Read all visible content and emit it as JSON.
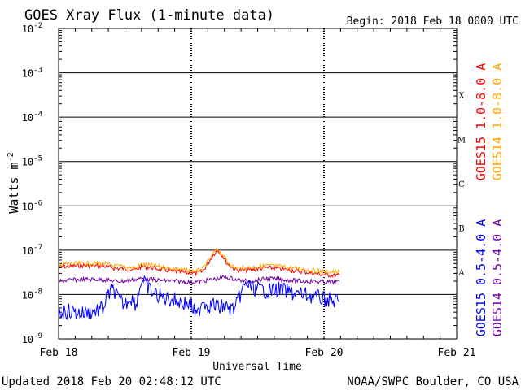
{
  "header": {
    "title": "GOES Xray Flux (1-minute data)",
    "begin_label": "Begin:  2018 Feb 18 0000 UTC"
  },
  "footer": {
    "updated": "Updated 2018 Feb 20 02:48:12 UTC",
    "credit": "NOAA/SWPC Boulder, CO USA"
  },
  "chart_data": {
    "type": "line",
    "title": "GOES Xray Flux (1-minute data)",
    "xlabel": "Universal Time",
    "ylabel": "Watts m",
    "ylabel_exp": "-2",
    "yscale": "log",
    "ylim": [
      1e-09,
      0.01
    ],
    "xlim_hours": [
      0,
      72
    ],
    "x_ticks": [
      {
        "hour": 0,
        "label": "Feb 18"
      },
      {
        "hour": 24,
        "label": "Feb 19"
      },
      {
        "hour": 48,
        "label": "Feb 20"
      },
      {
        "hour": 72,
        "label": "Feb 21"
      }
    ],
    "y_ticks": [
      {
        "exp": -9,
        "base": "10",
        "sup": "-9"
      },
      {
        "exp": -8,
        "base": "10",
        "sup": "-8"
      },
      {
        "exp": -7,
        "base": "10",
        "sup": "-7"
      },
      {
        "exp": -6,
        "base": "10",
        "sup": "-6"
      },
      {
        "exp": -5,
        "base": "10",
        "sup": "-5"
      },
      {
        "exp": -4,
        "base": "10",
        "sup": "-4"
      },
      {
        "exp": -3,
        "base": "10",
        "sup": "-3"
      },
      {
        "exp": -2,
        "base": "10",
        "sup": "-2"
      }
    ],
    "flare_classes": [
      {
        "label": "A",
        "exp": -7.5
      },
      {
        "label": "B",
        "exp": -6.5
      },
      {
        "label": "C",
        "exp": -5.5
      },
      {
        "label": "M",
        "exp": -4.5
      },
      {
        "label": "X",
        "exp": -3.5
      }
    ],
    "legend": [
      {
        "name": "GOES15 1.0-8.0 A",
        "color": "#ff0000"
      },
      {
        "name": "GOES14 1.0-8.0 A",
        "color": "#ffa500"
      },
      {
        "name": "GOES15 0.5-4.0 A",
        "color": "#0000ff"
      },
      {
        "name": "GOES14 0.5-4.0 A",
        "color": "#7000a0"
      }
    ],
    "series": [
      {
        "name": "GOES15 1.0-8.0 A",
        "color": "#ff0000",
        "points": [
          [
            0,
            4.2e-08
          ],
          [
            4,
            4.5e-08
          ],
          [
            8,
            4.4e-08
          ],
          [
            10,
            3.9e-08
          ],
          [
            12,
            3.8e-08
          ],
          [
            14,
            3.6e-08
          ],
          [
            15,
            4.3e-08
          ],
          [
            17,
            4e-08
          ],
          [
            19,
            3.6e-08
          ],
          [
            21,
            3.3e-08
          ],
          [
            23,
            3.1e-08
          ],
          [
            25,
            3e-08
          ],
          [
            26,
            3.3e-08
          ],
          [
            27,
            5e-08
          ],
          [
            28,
            8e-08
          ],
          [
            28.8,
            1e-07
          ],
          [
            29.5,
            8e-08
          ],
          [
            30.5,
            5e-08
          ],
          [
            32,
            3.6e-08
          ],
          [
            34,
            3.5e-08
          ],
          [
            36,
            3.8e-08
          ],
          [
            38,
            4e-08
          ],
          [
            40,
            3.8e-08
          ],
          [
            42,
            3.5e-08
          ],
          [
            44,
            3.3e-08
          ],
          [
            46,
            3e-08
          ],
          [
            48,
            2.8e-08
          ],
          [
            50,
            2.7e-08
          ],
          [
            50.8,
            2.7e-08
          ]
        ]
      },
      {
        "name": "GOES14 1.0-8.0 A",
        "color": "#ffa500",
        "points": [
          [
            0,
            4.8e-08
          ],
          [
            4,
            5e-08
          ],
          [
            8,
            5e-08
          ],
          [
            10,
            4.4e-08
          ],
          [
            12,
            4.2e-08
          ],
          [
            14,
            4e-08
          ],
          [
            15,
            4.8e-08
          ],
          [
            17,
            4.5e-08
          ],
          [
            19,
            4.1e-08
          ],
          [
            21,
            3.8e-08
          ],
          [
            23,
            3.5e-08
          ],
          [
            25,
            3.4e-08
          ],
          [
            26,
            3.7e-08
          ],
          [
            27,
            5.4e-08
          ],
          [
            28,
            8.5e-08
          ],
          [
            28.8,
            1.05e-07
          ],
          [
            29.5,
            8.6e-08
          ],
          [
            30.5,
            5.5e-08
          ],
          [
            32,
            4e-08
          ],
          [
            34,
            4e-08
          ],
          [
            36,
            4.3e-08
          ],
          [
            38,
            4.5e-08
          ],
          [
            40,
            4.3e-08
          ],
          [
            42,
            4e-08
          ],
          [
            44,
            3.8e-08
          ],
          [
            46,
            3.5e-08
          ],
          [
            48,
            3.3e-08
          ],
          [
            50,
            3.2e-08
          ],
          [
            50.8,
            3.2e-08
          ]
        ]
      },
      {
        "name": "GOES14 0.5-4.0 A",
        "color": "#7000a0",
        "points": [
          [
            0,
            2e-08
          ],
          [
            4,
            2.2e-08
          ],
          [
            8,
            2.2e-08
          ],
          [
            10,
            2e-08
          ],
          [
            12,
            2e-08
          ],
          [
            15,
            2.3e-08
          ],
          [
            18,
            2.1e-08
          ],
          [
            21,
            2e-08
          ],
          [
            24,
            1.9e-08
          ],
          [
            26,
            2e-08
          ],
          [
            28,
            2.2e-08
          ],
          [
            30,
            2.5e-08
          ],
          [
            32,
            2.2e-08
          ],
          [
            34,
            2e-08
          ],
          [
            36,
            2.1e-08
          ],
          [
            38,
            2.3e-08
          ],
          [
            40,
            2.2e-08
          ],
          [
            42,
            2.1e-08
          ],
          [
            44,
            2e-08
          ],
          [
            46,
            2e-08
          ],
          [
            48,
            1.9e-08
          ],
          [
            50,
            1.9e-08
          ],
          [
            50.8,
            1.9e-08
          ]
        ]
      },
      {
        "name": "GOES15 0.5-4.0 A",
        "color": "#0000ff",
        "points": [
          [
            0,
            4e-09
          ],
          [
            2,
            4.2e-09
          ],
          [
            4,
            3.8e-09
          ],
          [
            6,
            4.1e-09
          ],
          [
            8,
            4.8e-09
          ],
          [
            9,
            1e-08
          ],
          [
            10,
            1.3e-08
          ],
          [
            11,
            7e-09
          ],
          [
            12,
            6e-09
          ],
          [
            13,
            9e-09
          ],
          [
            14,
            6e-09
          ],
          [
            15,
            2.2e-08
          ],
          [
            16,
            1.5e-08
          ],
          [
            17,
            1.1e-08
          ],
          [
            18,
            9.5e-09
          ],
          [
            19,
            8.5e-09
          ],
          [
            20,
            8e-09
          ],
          [
            21,
            7.5e-09
          ],
          [
            22,
            6.8e-09
          ],
          [
            23,
            6.2e-09
          ],
          [
            24,
            5.8e-09
          ],
          [
            25,
            3e-09
          ],
          [
            26,
            8e-09
          ],
          [
            27,
            5.5e-09
          ],
          [
            28,
            6e-09
          ],
          [
            29,
            5e-09
          ],
          [
            30,
            5.5e-09
          ],
          [
            31,
            4.6e-09
          ],
          [
            32,
            5e-09
          ],
          [
            33,
            1.1e-08
          ],
          [
            34,
            1.8e-08
          ],
          [
            35,
            1.4e-08
          ],
          [
            36,
            1.3e-08
          ],
          [
            38,
            1.2e-08
          ],
          [
            40,
            1.3e-08
          ],
          [
            42,
            1.1e-08
          ],
          [
            44,
            1e-08
          ],
          [
            46,
            9e-09
          ],
          [
            48,
            8e-09
          ],
          [
            50,
            7e-09
          ],
          [
            50.8,
            7e-09
          ]
        ]
      }
    ]
  }
}
